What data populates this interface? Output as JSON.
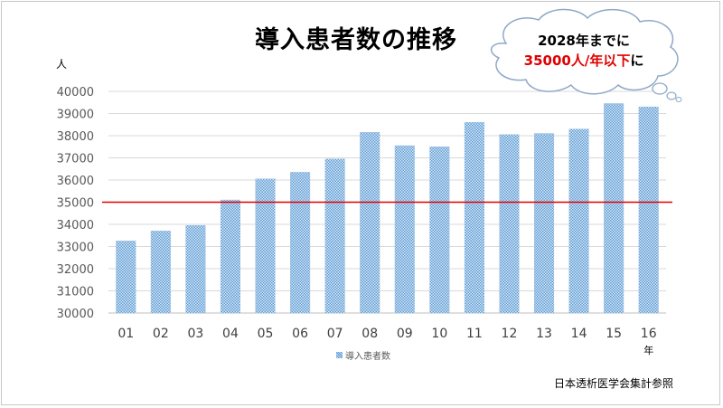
{
  "title": "導入患者数の推移",
  "source_note": "日本透析医学会集計参照",
  "callout": {
    "line1": "2028年までに",
    "line2_red": "35000人/年以下",
    "line2_suffix": "に"
  },
  "chart_data": {
    "type": "bar",
    "title": "導入患者数の推移",
    "categories": [
      "01",
      "02",
      "03",
      "04",
      "05",
      "06",
      "07",
      "08",
      "09",
      "10",
      "11",
      "12",
      "13",
      "14",
      "15",
      "16"
    ],
    "series": [
      {
        "name": "導入患者数",
        "values": [
          33250,
          33700,
          33950,
          35100,
          36050,
          36350,
          36950,
          38150,
          37550,
          37500,
          38600,
          38050,
          38100,
          38300,
          39450,
          39300
        ]
      }
    ],
    "ylabel": "人",
    "xlabel": "年",
    "ylim": [
      30000,
      40000
    ],
    "yticks": [
      30000,
      31000,
      32000,
      33000,
      34000,
      35000,
      36000,
      37000,
      38000,
      39000,
      40000
    ],
    "reference_line": {
      "value": 35000,
      "color": "#e00000"
    },
    "grid": true,
    "legend_position": "bottom",
    "bar_color": "#5b9bd5"
  }
}
